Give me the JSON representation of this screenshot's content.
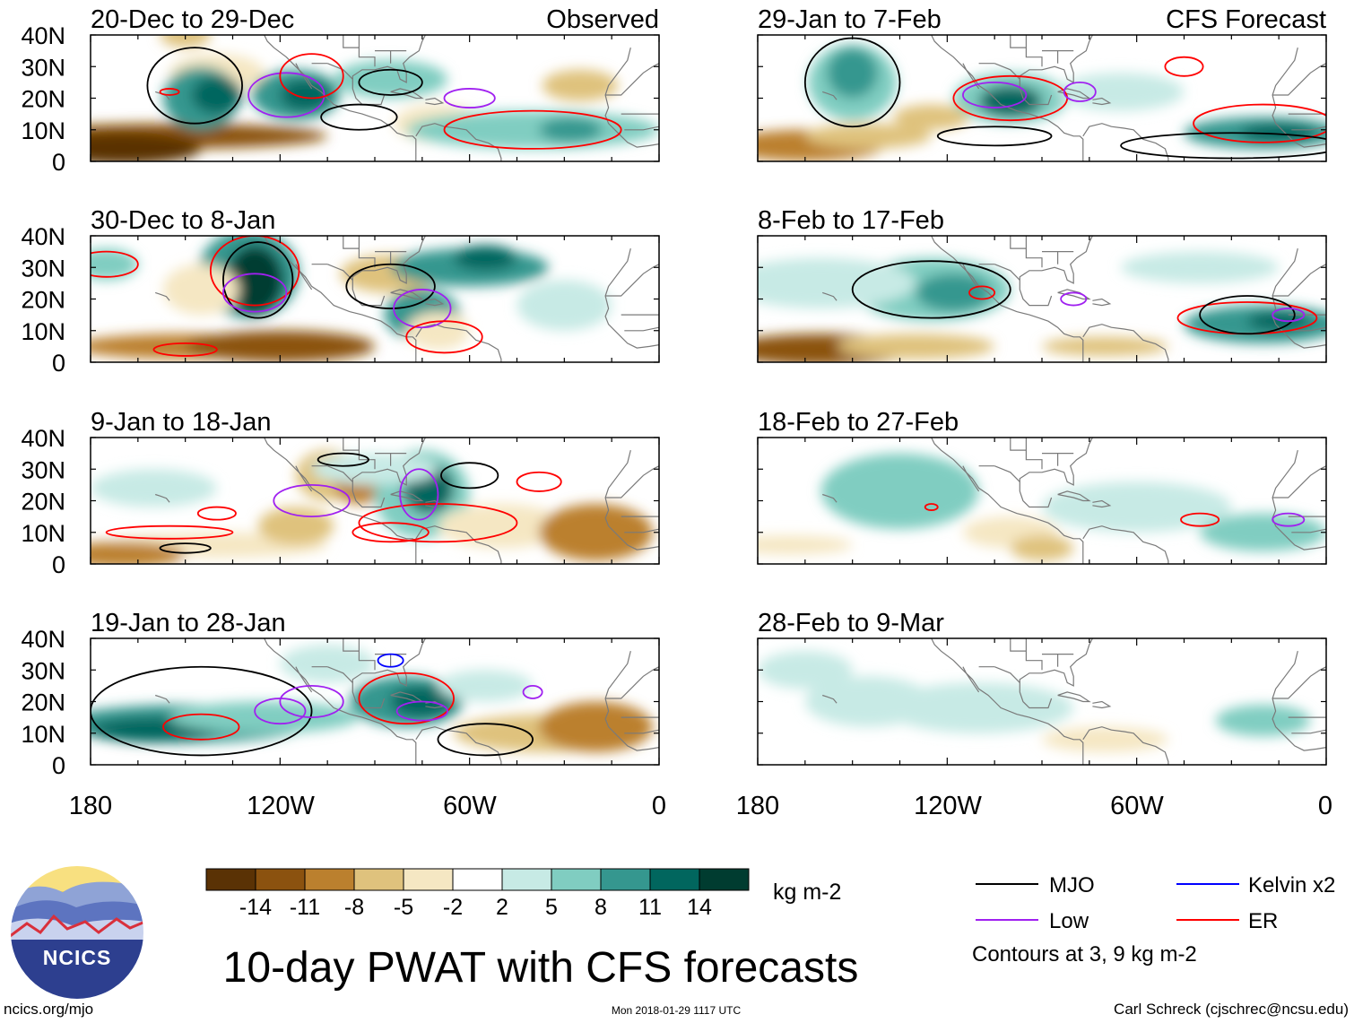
{
  "panels": [
    {
      "title": "20-Dec to 29-Dec",
      "tag": "Observed"
    },
    {
      "title": "30-Dec to 8-Jan",
      "tag": ""
    },
    {
      "title": "9-Jan to 18-Jan",
      "tag": ""
    },
    {
      "title": "19-Jan to 28-Jan",
      "tag": ""
    },
    {
      "title": "29-Jan to 7-Feb",
      "tag": "CFS Forecast"
    },
    {
      "title": "8-Feb to 17-Feb",
      "tag": ""
    },
    {
      "title": "18-Feb to 27-Feb",
      "tag": ""
    },
    {
      "title": "28-Feb to 9-Mar",
      "tag": ""
    }
  ],
  "y_ticks": [
    "40N",
    "30N",
    "20N",
    "10N",
    "0"
  ],
  "x_ticks": [
    "180",
    "120W",
    "60W",
    "0"
  ],
  "colorbar": {
    "colors": [
      "#5a3205",
      "#8b520f",
      "#bb802e",
      "#dfc27d",
      "#f5e7c3",
      "#ffffff",
      "#c7eae5",
      "#80cdc1",
      "#35978f",
      "#01665e",
      "#003c30"
    ],
    "labels": [
      "-14",
      "-11",
      "-8",
      "-5",
      "-2",
      "2",
      "5",
      "8",
      "11",
      "14"
    ],
    "units": "kg m-2"
  },
  "title": "10-day PWAT with CFS forecasts",
  "logo_text": "NCICS",
  "website": "ncics.org/mjo",
  "timestamp": "Mon 2018-01-29 1117 UTC",
  "author": "Carl Schreck (cjschrec@ncsu.edu)",
  "legend": {
    "items": [
      {
        "label": "MJO",
        "color": "#000000"
      },
      {
        "label": "Low",
        "color": "#a020f0"
      },
      {
        "label": "Kelvin x2",
        "color": "#0000ff"
      },
      {
        "label": "ER",
        "color": "#ff0000"
      }
    ],
    "note": "Contours at 3, 9 kg m-2"
  },
  "chart_data": {
    "type": "heatmap",
    "variable": "PWAT anomaly",
    "units": "kg m-2",
    "lon_range": [
      -180,
      0
    ],
    "lat_range": [
      0,
      40
    ],
    "levels": [
      -14,
      -11,
      -8,
      -5,
      -2,
      2,
      5,
      8,
      11,
      14
    ],
    "panels": [
      "20-Dec to 29-Dec",
      "30-Dec to 8-Jan",
      "9-Jan to 18-Jan",
      "19-Jan to 28-Jan",
      "29-Jan to 7-Feb",
      "8-Feb to 17-Feb",
      "18-Feb to 27-Feb",
      "28-Feb to 9-Mar"
    ],
    "contours": "3, 9 kg m-2"
  }
}
